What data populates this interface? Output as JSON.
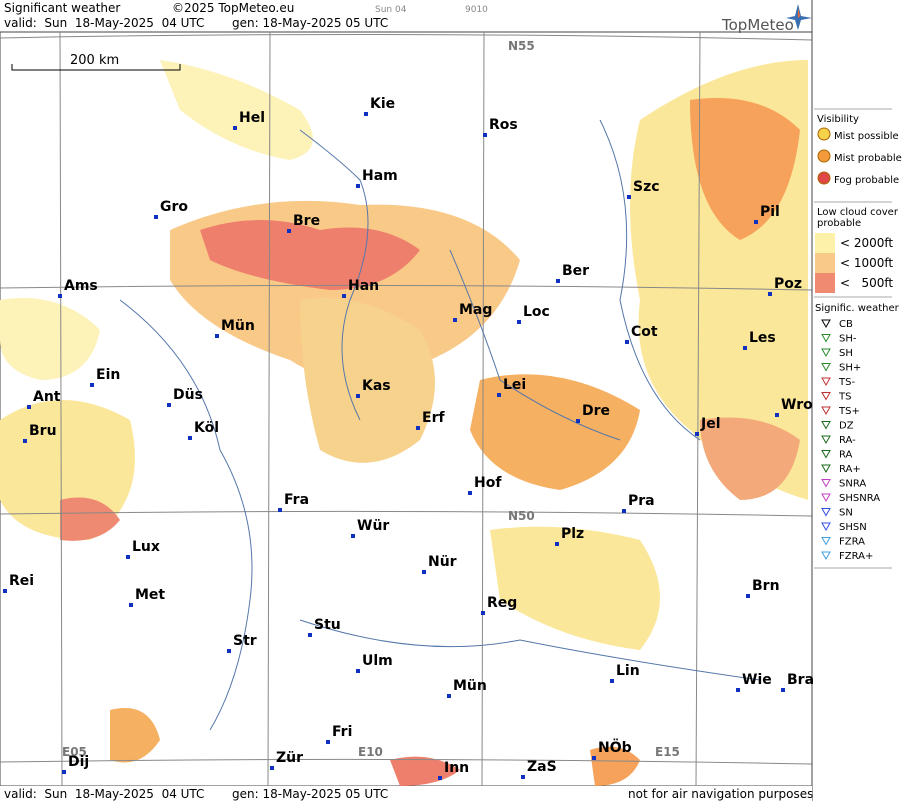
{
  "header": {
    "title": "Significant weather",
    "copyright": "©2025 TopMeteo.eu",
    "run": "Sun 04",
    "code": "9010",
    "valid": "valid:  Sun  18-May-2025  04 UTC",
    "generated": "gen: 18-May-2025 05 UTC",
    "logo": "TopMeteo"
  },
  "map": {
    "scale": "200 km",
    "grid_labels": [
      "N55",
      "N50",
      "E05",
      "E10",
      "E15"
    ],
    "cities": [
      "Kie",
      "Hel",
      "Ros",
      "Ham",
      "Gro",
      "Bre",
      "Szc",
      "Pil",
      "Ams",
      "Han",
      "Ber",
      "Mag",
      "Loc",
      "Poz",
      "Mün",
      "Cot",
      "Les",
      "Ein",
      "Kas",
      "Lei",
      "Ant",
      "Düs",
      "Wro",
      "Köl",
      "Erf",
      "Dre",
      "Jel",
      "Bru",
      "Hof",
      "Fra",
      "Pra",
      "Wür",
      "Plz",
      "Lux",
      "Nür",
      "Rei",
      "Met",
      "Brn",
      "Reg",
      "Stu",
      "Str",
      "Lin",
      "Ulm",
      "Wie",
      "Bra",
      "Mün",
      "Fri",
      "Dij",
      "Zür",
      "Inn",
      "ZaS",
      "NÖb"
    ]
  },
  "legend": {
    "visibility": {
      "title": "Visibility",
      "items": [
        "Mist possible",
        "Mist probable",
        "Fog probable"
      ]
    },
    "low_cloud": {
      "title": [
        "Low cloud cover",
        "probable"
      ],
      "items": [
        "< 2000ft",
        "< 1000ft",
        "<   500ft"
      ]
    },
    "significant_weather": {
      "title": "Signific. weather",
      "items": [
        "CB",
        "SH-",
        "SH",
        "SH+",
        "TS-",
        "TS",
        "TS+",
        "DZ",
        "RA-",
        "RA",
        "RA+",
        "SNRA",
        "SHSNRA",
        "SN",
        "SHSN",
        "FZRA",
        "FZRA+"
      ]
    }
  },
  "footer": {
    "valid": "valid:  Sun  18-May-2025  04 UTC",
    "generated": "gen: 18-May-2025 05 UTC",
    "note": "not for air navigation purposes"
  }
}
